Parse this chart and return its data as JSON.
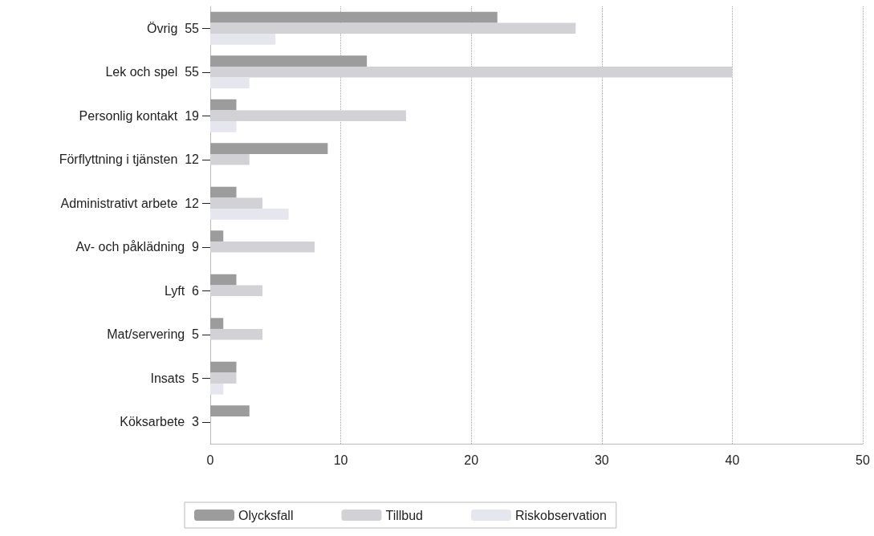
{
  "chart_data": {
    "type": "bar",
    "orientation": "horizontal",
    "categories": [
      "Övrig",
      "Lek och spel",
      "Personlig kontakt",
      "Förflyttning i tjänsten",
      "Administrativt arbete",
      "Av- och påklädning",
      "Lyft",
      "Mat/servering",
      "Insats",
      "Köksarbete"
    ],
    "totals": [
      "55",
      "55",
      "19",
      "12",
      "12",
      "9",
      "6",
      "5",
      "5",
      "3"
    ],
    "series": [
      {
        "name": "Olycksfall",
        "color": "#9c9c9c",
        "values": [
          22,
          12,
          2,
          9,
          2,
          1,
          2,
          1,
          2,
          3
        ]
      },
      {
        "name": "Tillbud",
        "color": "#d2d2d6",
        "values": [
          28,
          40,
          15,
          3,
          4,
          8,
          4,
          4,
          2,
          0
        ]
      },
      {
        "name": "Riskobservation",
        "color": "#e6e6ee",
        "values": [
          5,
          3,
          2,
          0,
          6,
          0,
          0,
          0,
          1,
          0
        ]
      }
    ],
    "xlim": [
      0,
      50
    ],
    "xticks": [
      0,
      10,
      20,
      30,
      40,
      50
    ],
    "grid": "x",
    "legend": "bottom"
  }
}
